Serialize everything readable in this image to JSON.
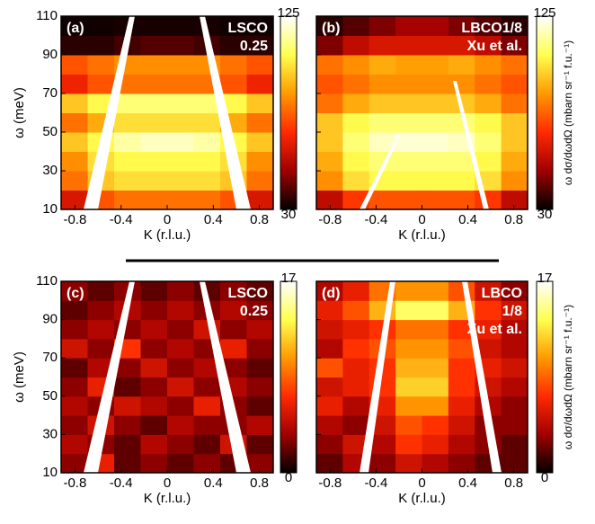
{
  "chart_data": [
    {
      "type": "heatmap",
      "panel_label": "(a)",
      "annotation": [
        "LSCO",
        "0.25"
      ],
      "xlabel": "K (r.l.u.)",
      "ylabel": "ω (meV)",
      "xlim": [
        -0.92,
        0.92
      ],
      "ylim": [
        10,
        110
      ],
      "xticks": [
        -0.8,
        -0.4,
        0,
        0.4,
        0.8
      ],
      "yticks": [
        10,
        30,
        50,
        70,
        90,
        110
      ],
      "ytick_labels": true,
      "xbins": [
        -0.92,
        -0.69,
        -0.46,
        -0.23,
        0,
        0.23,
        0.46,
        0.69,
        0.92
      ],
      "ybins": [
        10,
        20,
        30,
        40,
        50,
        60,
        70,
        80,
        90,
        100,
        110
      ],
      "values": [
        [
          60,
          75,
          80,
          80,
          80,
          80,
          75,
          60
        ],
        [
          80,
          95,
          100,
          100,
          100,
          100,
          95,
          80
        ],
        [
          85,
          100,
          105,
          105,
          105,
          105,
          100,
          85
        ],
        [
          95,
          105,
          115,
          118,
          118,
          115,
          105,
          95
        ],
        [
          80,
          90,
          100,
          100,
          100,
          100,
          90,
          80
        ],
        [
          95,
          105,
          110,
          110,
          110,
          110,
          105,
          95
        ],
        [
          65,
          75,
          80,
          80,
          80,
          80,
          75,
          65
        ],
        [
          75,
          80,
          85,
          85,
          85,
          85,
          80,
          75
        ],
        [
          35,
          35,
          38,
          40,
          40,
          38,
          35,
          35
        ],
        [
          32,
          32,
          33,
          33,
          33,
          33,
          32,
          32
        ]
      ],
      "clim": [
        30,
        125
      ],
      "cticks": [
        30,
        125
      ],
      "colormap": [
        "#000000",
        "#a00000",
        "#ff2a00",
        "#ff9a00",
        "#ffff50",
        "#ffffff"
      ]
    },
    {
      "type": "heatmap",
      "panel_label": "(b)",
      "annotation": [
        "LBCO1/8",
        "Xu et al."
      ],
      "xlabel": "K (r.l.u.)",
      "colorbar_label": "ω dσ/dωdΩ (mbarn sr⁻¹ f.u.⁻¹)",
      "xlim": [
        -0.92,
        0.92
      ],
      "ylim": [
        10,
        110
      ],
      "xticks": [
        -0.8,
        -0.4,
        0,
        0.4,
        0.8
      ],
      "yticks": [
        10,
        30,
        50,
        70,
        90,
        110
      ],
      "ytick_labels": false,
      "xbins": [
        -0.92,
        -0.69,
        -0.46,
        -0.23,
        0,
        0.23,
        0.46,
        0.69,
        0.92
      ],
      "ybins": [
        10,
        20,
        30,
        40,
        50,
        60,
        70,
        80,
        90,
        100,
        110
      ],
      "values": [
        [
          55,
          70,
          75,
          75,
          75,
          75,
          70,
          55
        ],
        [
          85,
          100,
          105,
          105,
          105,
          105,
          100,
          85
        ],
        [
          90,
          105,
          110,
          110,
          110,
          110,
          105,
          90
        ],
        [
          95,
          110,
          118,
          120,
          120,
          118,
          110,
          95
        ],
        [
          95,
          105,
          110,
          110,
          110,
          110,
          105,
          95
        ],
        [
          80,
          90,
          95,
          95,
          95,
          95,
          90,
          80
        ],
        [
          75,
          80,
          85,
          85,
          85,
          85,
          80,
          75
        ],
        [
          80,
          85,
          90,
          88,
          88,
          90,
          85,
          80
        ],
        [
          45,
          55,
          60,
          60,
          60,
          60,
          55,
          45
        ],
        [
          35,
          40,
          45,
          50,
          50,
          45,
          40,
          35
        ]
      ],
      "clim": [
        30,
        125
      ],
      "cticks": [
        30,
        125
      ],
      "colormap": [
        "#000000",
        "#a00000",
        "#ff2a00",
        "#ff9a00",
        "#ffff50",
        "#ffffff"
      ]
    },
    {
      "type": "heatmap",
      "panel_label": "(c)",
      "annotation": [
        "LSCO",
        "0.25"
      ],
      "xlabel": "K (r.l.u.)",
      "ylabel": "ω (meV)",
      "xlim": [
        -0.92,
        0.92
      ],
      "ylim": [
        10,
        110
      ],
      "xticks": [
        -0.8,
        -0.4,
        0,
        0.4,
        0.8
      ],
      "yticks": [
        10,
        30,
        50,
        70,
        90,
        110
      ],
      "ytick_labels": true,
      "xbins": [
        -0.92,
        -0.69,
        -0.46,
        -0.23,
        0,
        0.23,
        0.46,
        0.69,
        0.92
      ],
      "ybins": [
        10,
        20,
        30,
        40,
        50,
        60,
        70,
        80,
        90,
        100,
        110
      ],
      "values": [
        [
          3,
          6,
          2,
          3,
          2,
          3,
          2,
          3
        ],
        [
          4,
          3,
          2,
          4,
          3,
          2,
          5,
          2
        ],
        [
          3,
          5,
          3,
          2,
          4,
          3,
          3,
          4
        ],
        [
          4,
          3,
          5,
          4,
          3,
          6,
          3,
          2
        ],
        [
          3,
          6,
          2,
          3,
          5,
          3,
          4,
          3
        ],
        [
          2,
          4,
          3,
          5,
          3,
          4,
          3,
          2
        ],
        [
          5,
          3,
          7,
          3,
          4,
          3,
          6,
          3
        ],
        [
          3,
          4,
          3,
          4,
          3,
          5,
          3,
          4
        ],
        [
          2,
          3,
          4,
          3,
          4,
          3,
          4,
          3
        ],
        [
          3,
          2,
          3,
          2,
          3,
          2,
          3,
          2
        ]
      ],
      "clim": [
        0,
        17
      ],
      "cticks": [
        0,
        17
      ],
      "colormap": [
        "#000000",
        "#a00000",
        "#ff2a00",
        "#ff9a00",
        "#ffff50",
        "#ffffff"
      ]
    },
    {
      "type": "heatmap",
      "panel_label": "(d)",
      "annotation": [
        "LBCO",
        "1/8",
        "Xu et al."
      ],
      "xlabel": "K (r.l.u.)",
      "colorbar_label": "ω dσ/dωdΩ (mbarn sr⁻¹ f.u.⁻¹)",
      "xlim": [
        -0.92,
        0.92
      ],
      "ylim": [
        10,
        110
      ],
      "xticks": [
        -0.8,
        -0.4,
        0,
        0.4,
        0.8
      ],
      "yticks": [
        10,
        30,
        50,
        70,
        90,
        110
      ],
      "ytick_labels": false,
      "xbins": [
        -0.92,
        -0.69,
        -0.46,
        -0.23,
        0,
        0.23,
        0.46,
        0.69,
        0.92
      ],
      "ybins": [
        10,
        20,
        30,
        40,
        50,
        60,
        70,
        80,
        90,
        100,
        110
      ],
      "values": [
        [
          2,
          4,
          3,
          5,
          4,
          3,
          2,
          2
        ],
        [
          3,
          5,
          4,
          7,
          6,
          4,
          3,
          2
        ],
        [
          4,
          3,
          5,
          8,
          7,
          5,
          3,
          3
        ],
        [
          6,
          4,
          6,
          10,
          10,
          6,
          4,
          3
        ],
        [
          5,
          6,
          7,
          12,
          12,
          7,
          5,
          4
        ],
        [
          8,
          6,
          7,
          11,
          11,
          7,
          6,
          5
        ],
        [
          4,
          7,
          8,
          10,
          10,
          8,
          5,
          4
        ],
        [
          5,
          6,
          7,
          9,
          9,
          7,
          6,
          4
        ],
        [
          6,
          8,
          11,
          14,
          14,
          11,
          7,
          5
        ],
        [
          4,
          6,
          9,
          10,
          10,
          8,
          5,
          3
        ]
      ],
      "clim": [
        0,
        17
      ],
      "cticks": [
        0,
        17
      ],
      "colormap": [
        "#000000",
        "#a00000",
        "#ff2a00",
        "#ff9a00",
        "#ffff50",
        "#ffffff"
      ]
    }
  ]
}
